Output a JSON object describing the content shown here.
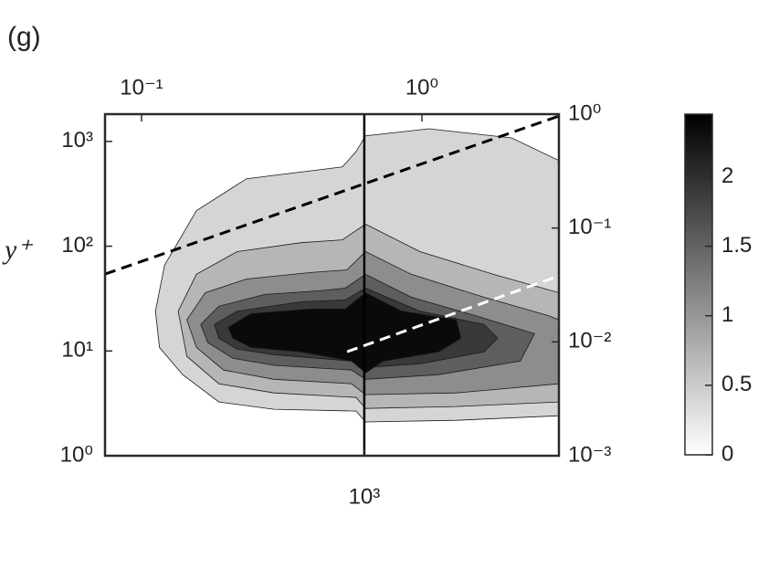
{
  "panel_label": "(g)",
  "chart_data": {
    "type": "contour",
    "ylabel": "y⁺",
    "xlim": [
      119,
      4940
    ],
    "ylim": [
      1,
      1820
    ],
    "x2lim": [
      0.0741,
      3.08
    ],
    "y2lim": [
      0.001,
      1
    ],
    "xticks": [
      {
        "value": 1000,
        "label": "10³"
      }
    ],
    "yticks": [
      {
        "value": 1,
        "label": "10⁰"
      },
      {
        "value": 10,
        "label": "10¹"
      },
      {
        "value": 100,
        "label": "10²"
      },
      {
        "value": 1000,
        "label": "10³"
      }
    ],
    "x2ticks": [
      {
        "value": 0.1,
        "label": "10⁻¹"
      },
      {
        "value": 1,
        "label": "10⁰"
      }
    ],
    "y2ticks": [
      {
        "value": 0.001,
        "label": "10⁻³"
      },
      {
        "value": 0.01,
        "label": "10⁻²"
      },
      {
        "value": 0.1,
        "label": "10⁻¹"
      },
      {
        "value": 1,
        "label": "10⁰"
      }
    ],
    "contours": [
      {
        "level": 0.4,
        "x": [
          180,
          194,
          252,
          380,
          835,
          935,
          1010,
          1700,
          3350,
          4940,
          4940,
          2130,
          1010,
          935,
          476,
          303,
          225,
          186
        ],
        "y": [
          24,
          66,
          218,
          440,
          571,
          802,
          1130,
          1320,
          1080,
          657,
          2.41,
          2.18,
          2.1,
          2.67,
          2.78,
          3.26,
          5.94,
          10.8
        ]
      },
      {
        "level": 0.7,
        "x": [
          217,
          252,
          352,
          596,
          835,
          1010,
          1580,
          2880,
          4940,
          4940,
          2130,
          1010,
          935,
          476,
          303,
          233
        ],
        "y": [
          24,
          54,
          88.7,
          108,
          115,
          162,
          88.7,
          54,
          36,
          3.26,
          2.95,
          2.83,
          3.6,
          3.98,
          4.86,
          8.9
        ]
      },
      {
        "level": 1.1,
        "x": [
          233,
          271,
          380,
          643,
          867,
          1010,
          1470,
          2670,
          4520,
          4940,
          4940,
          2130,
          1010,
          901,
          476,
          315,
          252
        ],
        "y": [
          19.8,
          36,
          48.6,
          56,
          59.4,
          88.7,
          54,
          32.6,
          21.8,
          19.8,
          4.86,
          3.98,
          3.83,
          4.86,
          5.37,
          6.57,
          10.8
        ]
      },
      {
        "level": 1.55,
        "x": [
          261,
          303,
          442,
          692,
          855,
          1010,
          1470,
          2480,
          4040,
          3600,
          1840,
          1010,
          901,
          476,
          340,
          277
        ],
        "y": [
          17.9,
          26.7,
          34.6,
          37.5,
          39.8,
          54,
          32.6,
          21.8,
          14.6,
          8.02,
          5.94,
          5.37,
          6.57,
          7.3,
          8.51,
          12.0
        ]
      },
      {
        "level": 1.9,
        "x": [
          292,
          352,
          596,
          855,
          1010,
          1580,
          2670,
          2990,
          2670,
          1580,
          1010,
          901,
          476,
          352,
          303
        ],
        "y": [
          17.9,
          24,
          29.5,
          30.7,
          39.8,
          24,
          17.9,
          13.2,
          9.8,
          7.55,
          6.97,
          8.02,
          9.23,
          10.4,
          13.2
        ]
      },
      {
        "level": 2.35,
        "x": [
          327,
          394,
          643,
          855,
          1010,
          1360,
          2130,
          2210,
          1840,
          1170,
          1010,
          901,
          596,
          394,
          340
        ],
        "y": [
          16.8,
          22.7,
          25.1,
          25.1,
          36,
          24,
          19.8,
          13.2,
          9.8,
          8.02,
          6.18,
          8.02,
          9.8,
          10.8,
          13.2
        ]
      }
    ],
    "lines": [
      {
        "x": [
          1000,
          1000
        ],
        "y": [
          1,
          1820
        ],
        "color": "#000000",
        "style": "solid"
      },
      {
        "x": [
          0.0741,
          3.08
        ],
        "y": [
          0.0394,
          0.962
        ],
        "color": "#000000",
        "style": "dashed",
        "axis": "y2"
      },
      {
        "x": [
          0.541,
          3.08
        ],
        "y": [
          0.0082,
          0.038
        ],
        "color": "#ffffff",
        "style": "dashed",
        "axis": "y2"
      }
    ],
    "colorbar": {
      "colors": [
        "#ffffff",
        "#000000"
      ],
      "clim": [
        0,
        2.45
      ],
      "ticks": [
        0,
        0.5,
        1,
        1.5,
        2
      ]
    }
  }
}
